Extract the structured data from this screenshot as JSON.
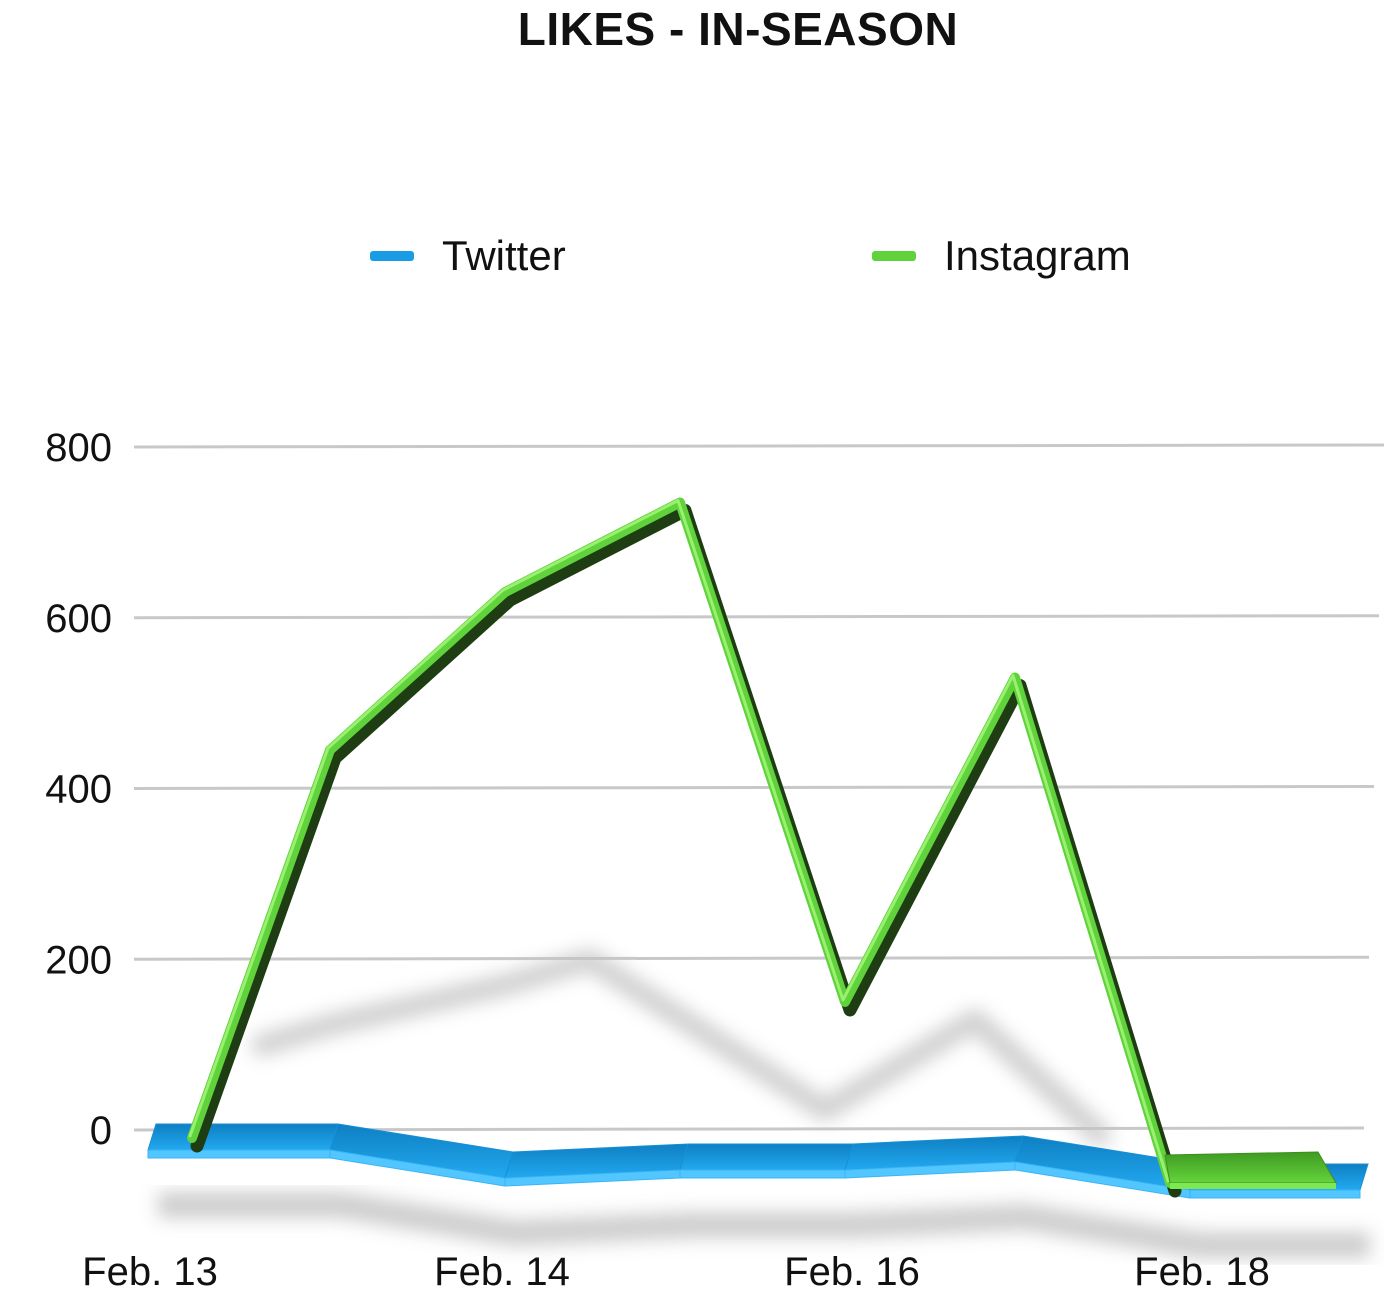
{
  "chart_data": {
    "type": "line",
    "title": "LIKES - IN-SEASON",
    "xlabel": "",
    "ylabel": "",
    "x": [
      "Feb. 13",
      "",
      "Feb. 14",
      "",
      "Feb. 16",
      "",
      "Feb. 18",
      ""
    ],
    "x_tick_labels": [
      "Feb. 13",
      "Feb. 14",
      "Feb. 16",
      "Feb. 18"
    ],
    "ylim": [
      0,
      800
    ],
    "y_ticks": [
      0,
      200,
      400,
      600,
      800
    ],
    "grid": true,
    "legend_position": "top",
    "style": "3d-ribbon",
    "series": [
      {
        "name": "Twitter",
        "color": "#1a9be6",
        "values": [
          12,
          12,
          5,
          7,
          7,
          9,
          2,
          2
        ]
      },
      {
        "name": "Instagram",
        "color": "#5fd23c",
        "values": [
          10,
          445,
          630,
          735,
          150,
          530,
          10,
          10
        ]
      }
    ]
  }
}
